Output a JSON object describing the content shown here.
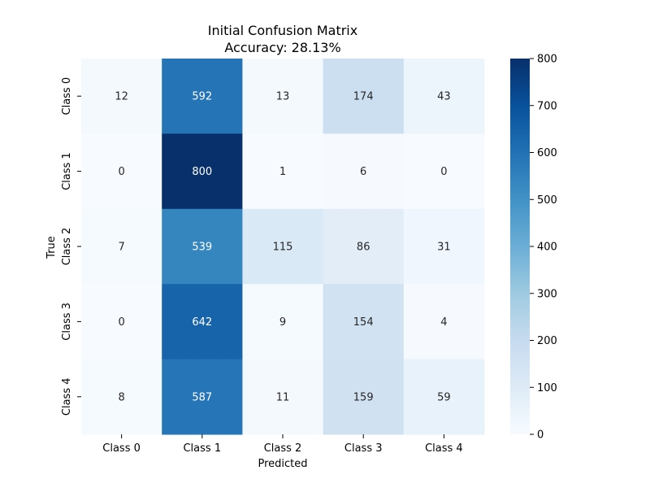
{
  "chart_data": {
    "type": "heatmap",
    "title": "Initial Confusion Matrix",
    "subtitle": "Accuracy: 28.13%",
    "xlabel": "Predicted",
    "ylabel": "True",
    "x_categories": [
      "Class 0",
      "Class 1",
      "Class 2",
      "Class 3",
      "Class 4"
    ],
    "y_categories": [
      "Class 0",
      "Class 1",
      "Class 2",
      "Class 3",
      "Class 4"
    ],
    "values": [
      [
        12,
        592,
        13,
        174,
        43
      ],
      [
        0,
        800,
        1,
        6,
        0
      ],
      [
        7,
        539,
        115,
        86,
        31
      ],
      [
        0,
        642,
        9,
        154,
        4
      ],
      [
        8,
        587,
        11,
        159,
        59
      ]
    ],
    "colorbar": {
      "range": [
        0,
        800
      ],
      "ticks": [
        "0",
        "100",
        "200",
        "300",
        "400",
        "500",
        "600",
        "700",
        "800"
      ],
      "colormap": "Blues"
    }
  }
}
